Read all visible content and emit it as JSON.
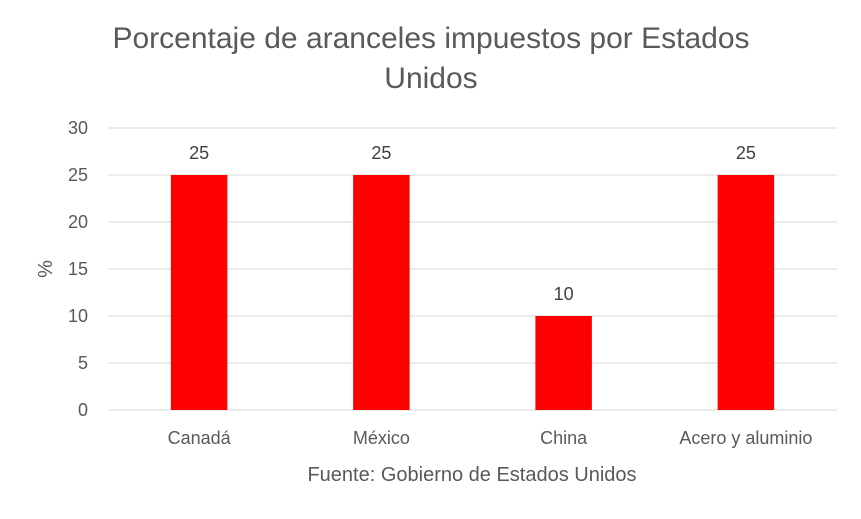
{
  "chart_data": {
    "type": "bar",
    "title_lines": [
      "Porcentaje de aranceles impuestos por Estados",
      "Unidos"
    ],
    "categories": [
      "Canadá",
      "México",
      "China",
      "Acero y aluminio"
    ],
    "values": [
      25,
      25,
      10,
      25
    ],
    "data_labels": [
      "25",
      "25",
      "10",
      "25"
    ],
    "ylabel": "%",
    "xlabel": "Fuente: Gobierno de Estados Unidos",
    "ylim": [
      0,
      30
    ],
    "yticks": [
      "0",
      "5",
      "10",
      "15",
      "20",
      "25",
      "30"
    ],
    "grid": true,
    "legend": "none",
    "bar_color": "#FF0000",
    "grid_color": "#D9D9D9"
  }
}
